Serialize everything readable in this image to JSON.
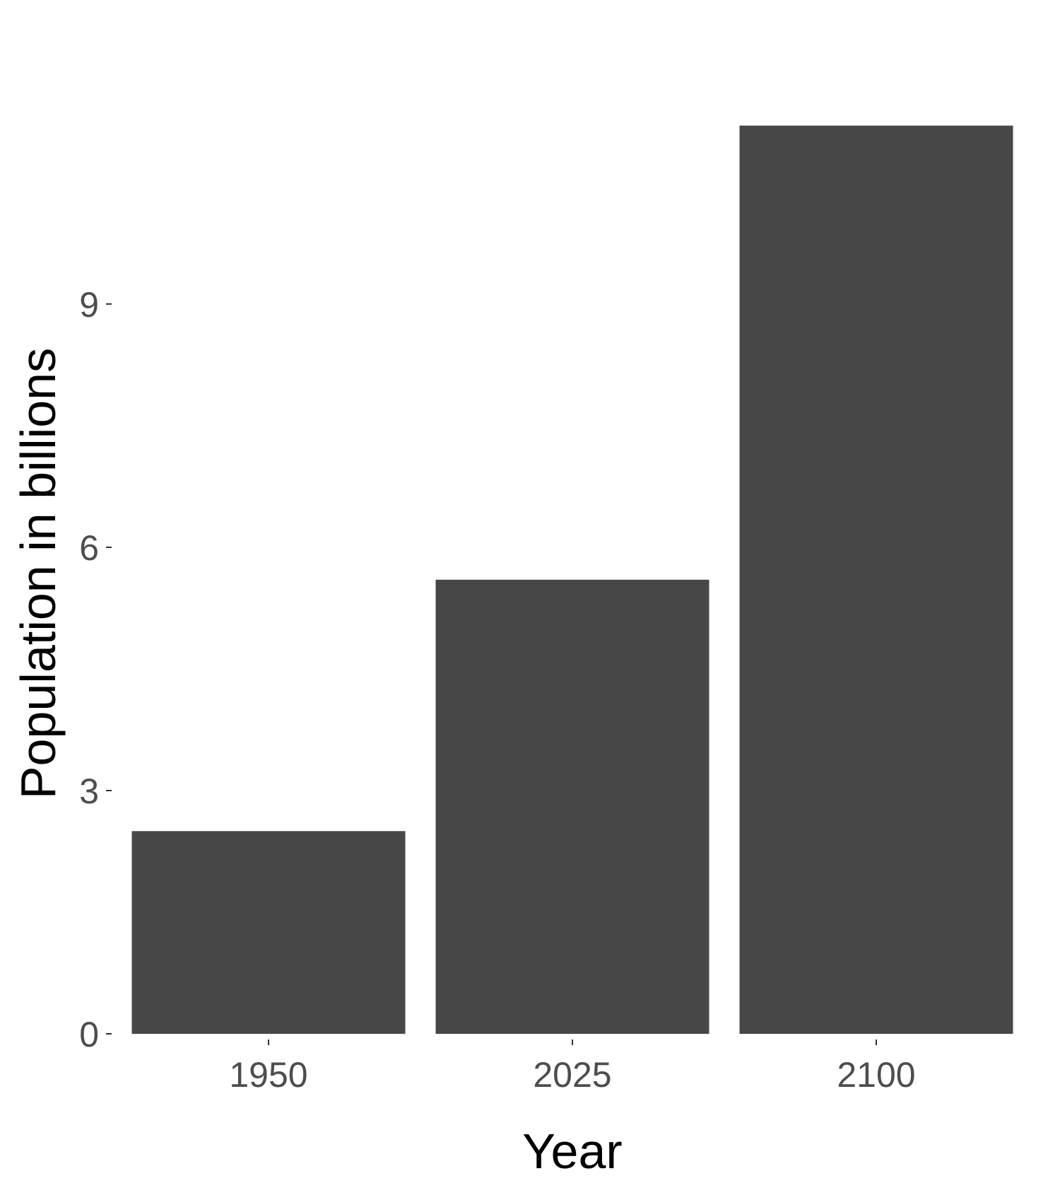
{
  "chart_data": {
    "type": "bar",
    "categories": [
      "1950",
      "2025",
      "2100"
    ],
    "values": [
      2.5,
      5.6,
      11.2
    ],
    "title": "",
    "xlabel": "Year",
    "ylabel": "Population in billions",
    "ylim": [
      0,
      12.4
    ],
    "yticks": [
      0,
      3,
      6,
      9
    ],
    "grid": false,
    "bar_color": "#474747",
    "background": "#ffffff"
  }
}
